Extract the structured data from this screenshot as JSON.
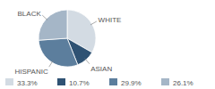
{
  "chart_data": {
    "type": "pie",
    "categories": [
      "WHITE",
      "ASIAN",
      "HISPANIC",
      "BLACK"
    ],
    "values": [
      33.3,
      10.7,
      29.9,
      26.1
    ],
    "value_labels": [
      "33.3%",
      "10.7%",
      "29.9%",
      "26.1%"
    ],
    "colors": [
      "#d3dbe3",
      "#2f5273",
      "#5c7e9d",
      "#a5b6c7"
    ],
    "legend": "bottom"
  }
}
